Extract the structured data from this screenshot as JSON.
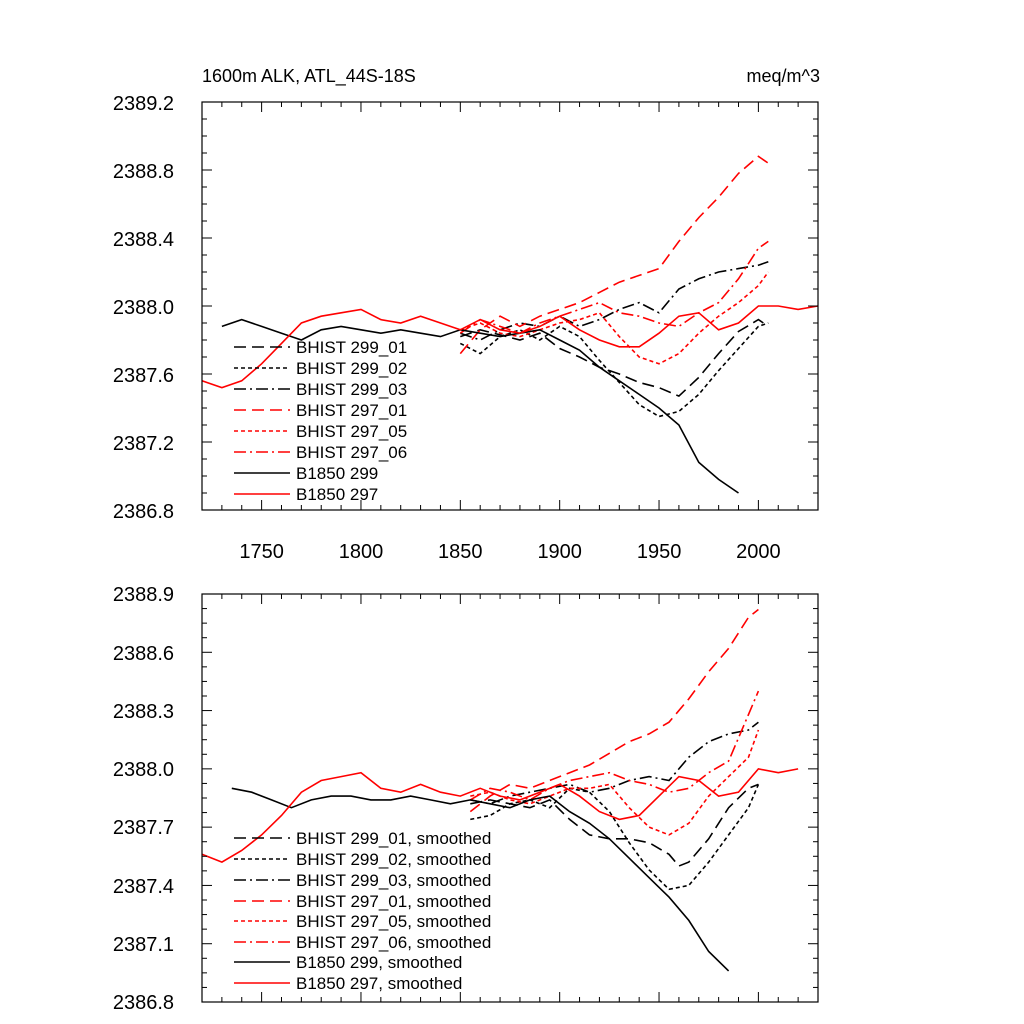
{
  "chart_data": [
    {
      "type": "line",
      "title_left": "1600m ALK, ATL_44S-18S",
      "title_right": "meq/m^3",
      "xlim": [
        1720,
        2030
      ],
      "ylim": [
        2386.8,
        2389.2
      ],
      "xticks": [
        1750,
        1800,
        1850,
        1900,
        1950,
        2000
      ],
      "xtick_labels": [
        "1750",
        "1800",
        "1850",
        "1900",
        "1950",
        "2000"
      ],
      "yticks": [
        2386.8,
        2387.2,
        2387.6,
        2388.0,
        2388.4,
        2388.8,
        2389.2
      ],
      "ytick_labels": [
        "2386.8",
        "2387.2",
        "2387.6",
        "2388.0",
        "2388.4",
        "2388.8",
        "2389.2"
      ],
      "legend_position": "bottom-left",
      "series": [
        {
          "name": "BHIST 299_01",
          "color": "#000000",
          "dash": "long-dash",
          "x": [
            1850,
            1860,
            1870,
            1880,
            1890,
            1900,
            1910,
            1920,
            1930,
            1940,
            1950,
            1960,
            1970,
            1980,
            1990,
            2000,
            2005
          ],
          "y": [
            2387.82,
            2387.86,
            2387.83,
            2387.8,
            2387.84,
            2387.75,
            2387.7,
            2387.64,
            2387.6,
            2387.55,
            2387.52,
            2387.47,
            2387.58,
            2387.72,
            2387.85,
            2387.92,
            2387.88
          ]
        },
        {
          "name": "BHIST 299_02",
          "color": "#000000",
          "dash": "short-dash",
          "x": [
            1850,
            1860,
            1870,
            1880,
            1890,
            1900,
            1910,
            1920,
            1930,
            1940,
            1950,
            1960,
            1970,
            1980,
            1990,
            2000,
            2005
          ],
          "y": [
            2387.78,
            2387.72,
            2387.82,
            2387.86,
            2387.8,
            2387.88,
            2387.82,
            2387.68,
            2387.55,
            2387.42,
            2387.35,
            2387.38,
            2387.48,
            2387.62,
            2387.75,
            2387.88,
            2387.9
          ]
        },
        {
          "name": "BHIST 299_03",
          "color": "#000000",
          "dash": "dash-dot",
          "x": [
            1850,
            1860,
            1870,
            1880,
            1890,
            1900,
            1910,
            1920,
            1930,
            1940,
            1950,
            1960,
            1970,
            1980,
            1990,
            2000,
            2005
          ],
          "y": [
            2387.84,
            2387.8,
            2387.86,
            2387.9,
            2387.88,
            2387.94,
            2387.88,
            2387.92,
            2387.98,
            2388.02,
            2387.96,
            2388.1,
            2388.16,
            2388.2,
            2388.22,
            2388.24,
            2388.26
          ]
        },
        {
          "name": "BHIST 297_01",
          "color": "#ff0000",
          "dash": "long-dash",
          "x": [
            1850,
            1860,
            1870,
            1880,
            1890,
            1900,
            1910,
            1920,
            1930,
            1940,
            1950,
            1960,
            1970,
            1980,
            1990,
            2000,
            2005
          ],
          "y": [
            2387.72,
            2387.86,
            2387.94,
            2387.88,
            2387.94,
            2387.98,
            2388.02,
            2388.08,
            2388.14,
            2388.18,
            2388.22,
            2388.38,
            2388.52,
            2388.64,
            2388.78,
            2388.88,
            2388.84
          ]
        },
        {
          "name": "BHIST 297_05",
          "color": "#ff0000",
          "dash": "short-dash",
          "x": [
            1850,
            1860,
            1870,
            1880,
            1890,
            1900,
            1910,
            1920,
            1930,
            1940,
            1950,
            1960,
            1970,
            1980,
            1990,
            2000,
            2005
          ],
          "y": [
            2387.86,
            2387.9,
            2387.84,
            2387.82,
            2387.86,
            2387.9,
            2387.92,
            2387.96,
            2387.82,
            2387.7,
            2387.66,
            2387.72,
            2387.84,
            2387.94,
            2388.02,
            2388.12,
            2388.2
          ]
        },
        {
          "name": "BHIST 297_06",
          "color": "#ff0000",
          "dash": "dash-dot",
          "x": [
            1850,
            1860,
            1870,
            1880,
            1890,
            1900,
            1910,
            1920,
            1930,
            1940,
            1950,
            1960,
            1970,
            1980,
            1990,
            2000,
            2005
          ],
          "y": [
            2387.84,
            2387.92,
            2387.88,
            2387.84,
            2387.9,
            2387.94,
            2387.98,
            2388.02,
            2387.96,
            2387.94,
            2387.9,
            2387.88,
            2387.96,
            2388.02,
            2388.16,
            2388.34,
            2388.38
          ]
        },
        {
          "name": "B1850 299",
          "color": "#000000",
          "dash": "solid",
          "x": [
            1730,
            1740,
            1750,
            1760,
            1770,
            1780,
            1790,
            1800,
            1810,
            1820,
            1830,
            1840,
            1850,
            1860,
            1870,
            1880,
            1890,
            1900,
            1910,
            1920,
            1930,
            1940,
            1950,
            1960,
            1970,
            1980,
            1990
          ],
          "y": [
            2387.88,
            2387.92,
            2387.88,
            2387.84,
            2387.8,
            2387.86,
            2387.88,
            2387.86,
            2387.84,
            2387.86,
            2387.84,
            2387.82,
            2387.86,
            2387.84,
            2387.82,
            2387.84,
            2387.86,
            2387.8,
            2387.74,
            2387.64,
            2387.56,
            2387.48,
            2387.4,
            2387.3,
            2387.08,
            2386.98,
            2386.9
          ]
        },
        {
          "name": "B1850 297",
          "color": "#ff0000",
          "dash": "solid",
          "x": [
            1720,
            1730,
            1740,
            1750,
            1760,
            1770,
            1780,
            1790,
            1800,
            1810,
            1820,
            1830,
            1840,
            1850,
            1860,
            1870,
            1880,
            1890,
            1900,
            1910,
            1920,
            1930,
            1940,
            1950,
            1960,
            1970,
            1980,
            1990,
            2000,
            2010,
            2020,
            2030
          ],
          "y": [
            2387.56,
            2387.52,
            2387.56,
            2387.66,
            2387.78,
            2387.9,
            2387.94,
            2387.96,
            2387.98,
            2387.92,
            2387.9,
            2387.94,
            2387.9,
            2387.86,
            2387.92,
            2387.86,
            2387.84,
            2387.88,
            2387.94,
            2387.86,
            2387.8,
            2387.76,
            2387.76,
            2387.84,
            2387.94,
            2387.96,
            2387.86,
            2387.9,
            2388.0,
            2388.0,
            2387.98,
            2388.0
          ]
        }
      ]
    },
    {
      "type": "line",
      "xlim": [
        1720,
        2030
      ],
      "ylim": [
        2386.8,
        2388.9
      ],
      "xticks": [
        1750,
        1800,
        1850,
        1900,
        1950,
        2000
      ],
      "yticks": [
        2386.8,
        2387.1,
        2387.4,
        2387.7,
        2388.0,
        2388.3,
        2388.6,
        2388.9
      ],
      "ytick_labels": [
        "2386.8",
        "2387.1",
        "2387.4",
        "2387.7",
        "2388.0",
        "2388.3",
        "2388.6",
        "2388.9"
      ],
      "legend_position": "bottom-left",
      "series": [
        {
          "name": "BHIST 299_01, smoothed",
          "color": "#000000",
          "dash": "long-dash",
          "x": [
            1855,
            1865,
            1875,
            1885,
            1895,
            1905,
            1915,
            1925,
            1935,
            1945,
            1955,
            1960,
            1965,
            1975,
            1985,
            1995,
            2000
          ],
          "y": [
            2387.82,
            2387.84,
            2387.82,
            2387.8,
            2387.84,
            2387.74,
            2387.66,
            2387.64,
            2387.64,
            2387.62,
            2387.56,
            2387.5,
            2387.52,
            2387.64,
            2387.8,
            2387.9,
            2387.92
          ]
        },
        {
          "name": "BHIST 299_02, smoothed",
          "color": "#000000",
          "dash": "short-dash",
          "x": [
            1855,
            1865,
            1875,
            1885,
            1895,
            1905,
            1915,
            1925,
            1935,
            1945,
            1955,
            1965,
            1975,
            1985,
            1995,
            2000
          ],
          "y": [
            2387.74,
            2387.76,
            2387.82,
            2387.84,
            2387.8,
            2387.9,
            2387.88,
            2387.78,
            2387.62,
            2387.48,
            2387.38,
            2387.4,
            2387.52,
            2387.66,
            2387.8,
            2387.92
          ]
        },
        {
          "name": "BHIST 299_03, smoothed",
          "color": "#000000",
          "dash": "dash-dot",
          "x": [
            1855,
            1865,
            1875,
            1885,
            1895,
            1905,
            1915,
            1925,
            1935,
            1945,
            1955,
            1965,
            1975,
            1985,
            1995,
            2000
          ],
          "y": [
            2387.84,
            2387.82,
            2387.86,
            2387.88,
            2387.9,
            2387.92,
            2387.88,
            2387.9,
            2387.94,
            2387.96,
            2387.94,
            2388.06,
            2388.14,
            2388.18,
            2388.2,
            2388.24
          ]
        },
        {
          "name": "BHIST 297_01, smoothed",
          "color": "#ff0000",
          "dash": "long-dash",
          "x": [
            1855,
            1865,
            1875,
            1885,
            1895,
            1905,
            1915,
            1925,
            1935,
            1945,
            1955,
            1965,
            1975,
            1985,
            1995,
            2000
          ],
          "y": [
            2387.78,
            2387.86,
            2387.92,
            2387.9,
            2387.94,
            2387.98,
            2388.02,
            2388.08,
            2388.14,
            2388.18,
            2388.24,
            2388.36,
            2388.5,
            2388.62,
            2388.78,
            2388.82
          ]
        },
        {
          "name": "BHIST 297_05, smoothed",
          "color": "#ff0000",
          "dash": "short-dash",
          "x": [
            1855,
            1865,
            1875,
            1885,
            1895,
            1905,
            1915,
            1925,
            1935,
            1945,
            1955,
            1965,
            1975,
            1985,
            1995,
            2000
          ],
          "y": [
            2387.86,
            2387.88,
            2387.84,
            2387.82,
            2387.86,
            2387.9,
            2387.9,
            2387.92,
            2387.8,
            2387.7,
            2387.66,
            2387.72,
            2387.86,
            2387.96,
            2388.06,
            2388.2
          ]
        },
        {
          "name": "BHIST 297_06, smoothed",
          "color": "#ff0000",
          "dash": "dash-dot",
          "x": [
            1855,
            1865,
            1875,
            1885,
            1895,
            1905,
            1915,
            1925,
            1935,
            1945,
            1955,
            1965,
            1975,
            1985,
            1995,
            2000
          ],
          "y": [
            2387.84,
            2387.9,
            2387.88,
            2387.84,
            2387.9,
            2387.94,
            2387.96,
            2387.98,
            2387.94,
            2387.92,
            2387.88,
            2387.9,
            2387.98,
            2388.04,
            2388.28,
            2388.4
          ]
        },
        {
          "name": "B1850 299, smoothed",
          "color": "#000000",
          "dash": "solid",
          "x": [
            1735,
            1745,
            1755,
            1765,
            1775,
            1785,
            1795,
            1805,
            1815,
            1825,
            1835,
            1845,
            1855,
            1865,
            1875,
            1885,
            1895,
            1905,
            1915,
            1925,
            1935,
            1945,
            1955,
            1965,
            1975,
            1985
          ],
          "y": [
            2387.9,
            2387.88,
            2387.84,
            2387.8,
            2387.84,
            2387.86,
            2387.86,
            2387.84,
            2387.84,
            2387.86,
            2387.84,
            2387.82,
            2387.84,
            2387.82,
            2387.8,
            2387.84,
            2387.86,
            2387.78,
            2387.72,
            2387.64,
            2387.54,
            2387.44,
            2387.34,
            2387.22,
            2387.06,
            2386.96
          ]
        },
        {
          "name": "B1850 297, smoothed",
          "color": "#ff0000",
          "dash": "solid",
          "x": [
            1720,
            1730,
            1740,
            1750,
            1760,
            1770,
            1780,
            1790,
            1800,
            1810,
            1820,
            1830,
            1840,
            1850,
            1860,
            1870,
            1880,
            1890,
            1900,
            1910,
            1920,
            1930,
            1940,
            1950,
            1960,
            1970,
            1980,
            1990,
            2000,
            2010,
            2020
          ],
          "y": [
            2387.56,
            2387.52,
            2387.58,
            2387.66,
            2387.76,
            2387.88,
            2387.94,
            2387.96,
            2387.98,
            2387.9,
            2387.88,
            2387.92,
            2387.88,
            2387.86,
            2387.9,
            2387.86,
            2387.84,
            2387.88,
            2387.92,
            2387.86,
            2387.78,
            2387.74,
            2387.76,
            2387.86,
            2387.96,
            2387.94,
            2387.86,
            2387.88,
            2388.0,
            2387.98,
            2388.0
          ]
        }
      ]
    }
  ]
}
